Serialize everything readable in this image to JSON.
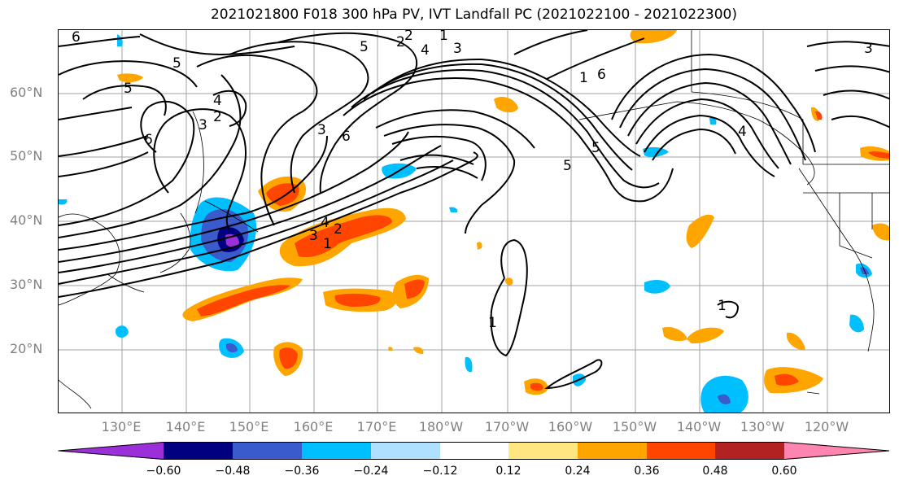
{
  "title": "2021021800 F018 300 hPa PV, IVT Landfall PC (2021022100 - 2021022300)",
  "map": {
    "latitude_labels": [
      "60°N",
      "50°N",
      "40°N",
      "30°N",
      "20°N"
    ],
    "longitude_labels": [
      "130°E",
      "140°E",
      "150°E",
      "160°E",
      "170°E",
      "180°W",
      "170°W",
      "160°W",
      "150°W",
      "140°W",
      "130°W",
      "120°W"
    ],
    "pv_contour_labels": [
      "6",
      "5",
      "5",
      "4",
      "3",
      "2",
      "5",
      "6",
      "3",
      "2",
      "1",
      "4",
      "2",
      "3",
      "1",
      "6",
      "5",
      "5",
      "6",
      "4",
      "3",
      "2",
      "1",
      "1",
      "1",
      "3",
      "4"
    ]
  },
  "colorbar": {
    "tick_labels": [
      "−0.60",
      "−0.48",
      "−0.36",
      "−0.24",
      "−0.12",
      "0.12",
      "0.24",
      "0.36",
      "0.48",
      "0.60"
    ],
    "colors": [
      "#9b30d9",
      "#000080",
      "#3a5bcb",
      "#00bfff",
      "#b0e0ff",
      "#ffffff",
      "#ffe680",
      "#ffa500",
      "#ff4500",
      "#b22222",
      "#ff85b0"
    ]
  }
}
